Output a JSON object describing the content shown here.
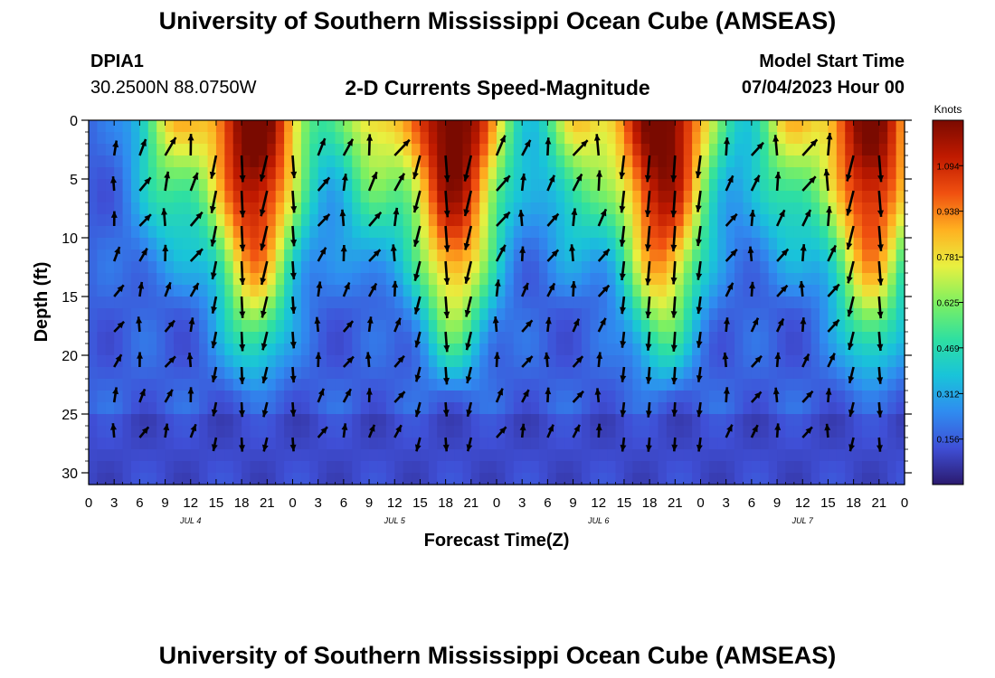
{
  "header": {
    "title": "University of Southern Mississippi Ocean Cube (AMSEAS)",
    "station_id": "DPIA1",
    "coordinates": "30.2500N  88.0750W",
    "subtitle": "2-D Currents Speed-Magnitude",
    "model_start_label": "Model Start Time",
    "model_start_value": "07/04/2023 Hour 00"
  },
  "footer": {
    "title": "University of Southern Mississippi Ocean Cube (AMSEAS)"
  },
  "chart_data": {
    "type": "heatmap",
    "title": "2-D Currents Speed-Magnitude",
    "xlabel": "Forecast Time(Z)",
    "ylabel": "Depth (ft)",
    "x_range_hours": [
      0,
      96
    ],
    "y_range_ft": [
      0,
      31
    ],
    "y_inverted": true,
    "x_tick_labels": [
      "0",
      "3",
      "6",
      "9",
      "12",
      "15",
      "18",
      "21",
      "0",
      "3",
      "6",
      "9",
      "12",
      "15",
      "18",
      "21",
      "0",
      "3",
      "6",
      "9",
      "12",
      "15",
      "18",
      "21",
      "0",
      "3",
      "6",
      "9",
      "12",
      "15",
      "18",
      "21",
      "0"
    ],
    "y_ticks": [
      0,
      5,
      10,
      15,
      20,
      25,
      30
    ],
    "day_labels": [
      {
        "label": "JUL 4",
        "hour": 12
      },
      {
        "label": "JUL 5",
        "hour": 36
      },
      {
        "label": "JUL 6",
        "hour": 60
      },
      {
        "label": "JUL 7",
        "hour": 84
      }
    ],
    "colorbar": {
      "units": "Knots",
      "ticks": [
        0.156,
        0.312,
        0.469,
        0.625,
        0.781,
        0.938,
        1.094
      ],
      "range": [
        0,
        1.25
      ],
      "colors": [
        "#2b1a6e",
        "#3f4fd6",
        "#2f8cf0",
        "#19c4d9",
        "#2fe0a0",
        "#7ff060",
        "#e8f040",
        "#ffb020",
        "#f05010",
        "#c01a00",
        "#7a0a00"
      ]
    },
    "high_speed_bands": [
      {
        "center_hour": 19.5,
        "peak_knots": 1.15
      },
      {
        "center_hour": 43.0,
        "peak_knots": 1.15
      },
      {
        "center_hour": 67.5,
        "peak_knots": 1.15
      },
      {
        "center_hour": 92.0,
        "peak_knots": 1.1
      }
    ],
    "vectors": {
      "grid_hours": [
        3,
        6,
        9,
        12,
        15,
        18,
        21,
        24,
        27,
        30,
        33,
        36,
        39,
        42,
        45,
        48,
        51,
        54,
        57,
        60,
        63,
        66,
        69,
        72,
        75,
        78,
        81,
        84,
        87,
        90,
        93,
        96
      ],
      "grid_depths_ft": [
        3,
        6,
        9,
        12,
        15,
        18,
        21,
        24,
        27
      ],
      "pattern": "mixed directions; predominantly northeast in mid-depths during flood, southward near high-speed bands"
    }
  }
}
